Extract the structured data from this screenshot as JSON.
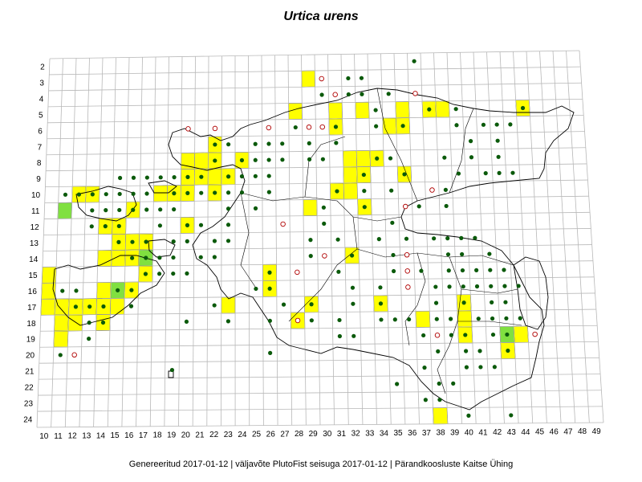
{
  "title": "Urtica urens",
  "footer": "Genereeritud 2017-01-12  |  väljavõte PlutoFist seisuga 2017-01-12  |  Pärandkoosluste Kaitse Ühing",
  "grid": {
    "x_labels": [
      "10",
      "11",
      "12",
      "13",
      "14",
      "15",
      "16",
      "17",
      "18",
      "19",
      "20",
      "21",
      "22",
      "23",
      "24",
      "25",
      "26",
      "27",
      "28",
      "29",
      "30",
      "31",
      "32",
      "33",
      "34",
      "35",
      "36",
      "37",
      "38",
      "39",
      "40",
      "41",
      "42",
      "43",
      "44",
      "45",
      "46",
      "47",
      "48",
      "49"
    ],
    "y_labels": [
      "2",
      "3",
      "4",
      "5",
      "6",
      "7",
      "8",
      "9",
      "10",
      "11",
      "12",
      "13",
      "14",
      "15",
      "16",
      "17",
      "18",
      "19",
      "20",
      "21",
      "22",
      "23",
      "24"
    ]
  },
  "colors": {
    "grid": "#b8b8b8",
    "coast": "#000000",
    "cell_yellow": "#ffff00",
    "cell_green": "#80e040",
    "dot_filled": "#0b5a0b",
    "dot_open": "#b00000"
  },
  "occurrence_cells": {
    "yellow": [
      [
        29,
        3
      ],
      [
        31,
        5
      ],
      [
        33,
        5
      ],
      [
        36,
        5
      ],
      [
        38,
        5
      ],
      [
        39,
        5
      ],
      [
        45,
        5
      ],
      [
        28,
        5
      ],
      [
        31,
        6
      ],
      [
        35,
        6
      ],
      [
        36,
        6
      ],
      [
        22,
        7
      ],
      [
        20,
        8
      ],
      [
        21,
        8
      ],
      [
        22,
        8
      ],
      [
        24,
        8
      ],
      [
        32,
        8
      ],
      [
        33,
        8
      ],
      [
        34,
        8
      ],
      [
        20,
        9
      ],
      [
        21,
        9
      ],
      [
        22,
        9
      ],
      [
        23,
        9
      ],
      [
        32,
        9
      ],
      [
        33,
        9
      ],
      [
        36,
        9
      ],
      [
        12,
        10
      ],
      [
        13,
        10
      ],
      [
        18,
        10
      ],
      [
        19,
        10
      ],
      [
        20,
        10
      ],
      [
        22,
        10
      ],
      [
        31,
        10
      ],
      [
        32,
        10
      ],
      [
        29,
        11
      ],
      [
        33,
        11
      ],
      [
        16,
        11
      ],
      [
        14,
        12
      ],
      [
        15,
        12
      ],
      [
        20,
        12
      ],
      [
        15,
        13
      ],
      [
        16,
        13
      ],
      [
        17,
        13
      ],
      [
        14,
        14
      ],
      [
        15,
        14
      ],
      [
        16,
        14
      ],
      [
        17,
        14
      ],
      [
        32,
        14
      ],
      [
        10,
        15
      ],
      [
        17,
        15
      ],
      [
        10,
        16
      ],
      [
        14,
        16
      ],
      [
        16,
        16
      ],
      [
        10,
        17
      ],
      [
        11,
        17
      ],
      [
        12,
        17
      ],
      [
        13,
        17
      ],
      [
        14,
        17
      ],
      [
        15,
        17
      ],
      [
        23,
        17
      ],
      [
        26,
        16
      ],
      [
        26,
        15
      ],
      [
        29,
        17
      ],
      [
        34,
        17
      ],
      [
        40,
        17
      ],
      [
        11,
        18
      ],
      [
        12,
        18
      ],
      [
        14,
        18
      ],
      [
        28,
        18
      ],
      [
        37,
        18
      ],
      [
        40,
        18
      ],
      [
        11,
        19
      ],
      [
        40,
        19
      ],
      [
        43,
        19
      ],
      [
        44,
        19
      ],
      [
        43,
        20
      ],
      [
        38,
        24
      ]
    ],
    "green": [
      [
        11,
        11
      ],
      [
        15,
        16
      ],
      [
        17,
        14
      ],
      [
        43,
        19
      ]
    ]
  },
  "records": {
    "filled": [
      [
        37,
        2
      ],
      [
        30,
        3
      ],
      [
        32,
        3
      ],
      [
        33,
        3
      ],
      [
        30,
        4
      ],
      [
        32,
        4
      ],
      [
        33,
        4
      ],
      [
        35,
        4
      ],
      [
        45,
        5
      ],
      [
        34,
        5
      ],
      [
        38,
        5
      ],
      [
        40,
        5
      ],
      [
        28,
        6
      ],
      [
        31,
        6
      ],
      [
        34,
        6
      ],
      [
        36,
        6
      ],
      [
        40,
        6
      ],
      [
        42,
        6
      ],
      [
        43,
        6
      ],
      [
        44,
        6
      ],
      [
        22,
        7
      ],
      [
        23,
        7
      ],
      [
        25,
        7
      ],
      [
        26,
        7
      ],
      [
        27,
        7
      ],
      [
        29,
        7
      ],
      [
        31,
        7
      ],
      [
        41,
        7
      ],
      [
        43,
        7
      ],
      [
        22,
        8
      ],
      [
        24,
        8
      ],
      [
        25,
        8
      ],
      [
        26,
        8
      ],
      [
        27,
        8
      ],
      [
        29,
        8
      ],
      [
        30,
        8
      ],
      [
        34,
        8
      ],
      [
        35,
        8
      ],
      [
        39,
        8
      ],
      [
        41,
        8
      ],
      [
        43,
        8
      ],
      [
        15,
        9
      ],
      [
        16,
        9
      ],
      [
        17,
        9
      ],
      [
        18,
        9
      ],
      [
        19,
        9
      ],
      [
        20,
        9
      ],
      [
        21,
        9
      ],
      [
        23,
        9
      ],
      [
        24,
        9
      ],
      [
        25,
        9
      ],
      [
        26,
        9
      ],
      [
        33,
        9
      ],
      [
        36,
        9
      ],
      [
        40,
        9
      ],
      [
        42,
        9
      ],
      [
        43,
        9
      ],
      [
        44,
        9
      ],
      [
        11,
        10
      ],
      [
        12,
        10
      ],
      [
        13,
        10
      ],
      [
        14,
        10
      ],
      [
        15,
        10
      ],
      [
        16,
        10
      ],
      [
        17,
        10
      ],
      [
        19,
        10
      ],
      [
        20,
        10
      ],
      [
        21,
        10
      ],
      [
        22,
        10
      ],
      [
        23,
        10
      ],
      [
        24,
        10
      ],
      [
        26,
        10
      ],
      [
        31,
        10
      ],
      [
        33,
        10
      ],
      [
        35,
        10
      ],
      [
        39,
        10
      ],
      [
        13,
        11
      ],
      [
        14,
        11
      ],
      [
        15,
        11
      ],
      [
        16,
        11
      ],
      [
        17,
        11
      ],
      [
        18,
        11
      ],
      [
        19,
        11
      ],
      [
        23,
        11
      ],
      [
        25,
        11
      ],
      [
        30,
        11
      ],
      [
        33,
        11
      ],
      [
        37,
        11
      ],
      [
        39,
        11
      ],
      [
        13,
        12
      ],
      [
        14,
        12
      ],
      [
        15,
        12
      ],
      [
        18,
        12
      ],
      [
        20,
        12
      ],
      [
        21,
        12
      ],
      [
        23,
        12
      ],
      [
        30,
        12
      ],
      [
        35,
        12
      ],
      [
        15,
        13
      ],
      [
        16,
        13
      ],
      [
        17,
        13
      ],
      [
        19,
        13
      ],
      [
        20,
        13
      ],
      [
        22,
        13
      ],
      [
        23,
        13
      ],
      [
        29,
        13
      ],
      [
        31,
        13
      ],
      [
        34,
        13
      ],
      [
        36,
        13
      ],
      [
        38,
        13
      ],
      [
        39,
        13
      ],
      [
        40,
        13
      ],
      [
        41,
        13
      ],
      [
        16,
        14
      ],
      [
        17,
        14
      ],
      [
        18,
        14
      ],
      [
        19,
        14
      ],
      [
        21,
        14
      ],
      [
        22,
        14
      ],
      [
        29,
        14
      ],
      [
        32,
        14
      ],
      [
        35,
        14
      ],
      [
        36,
        14
      ],
      [
        39,
        14
      ],
      [
        40,
        14
      ],
      [
        42,
        14
      ],
      [
        17,
        15
      ],
      [
        18,
        15
      ],
      [
        19,
        15
      ],
      [
        20,
        15
      ],
      [
        26,
        15
      ],
      [
        28,
        15
      ],
      [
        31,
        15
      ],
      [
        35,
        15
      ],
      [
        37,
        15
      ],
      [
        39,
        15
      ],
      [
        40,
        15
      ],
      [
        41,
        15
      ],
      [
        42,
        15
      ],
      [
        43,
        15
      ],
      [
        11,
        16
      ],
      [
        12,
        16
      ],
      [
        15,
        16
      ],
      [
        16,
        16
      ],
      [
        25,
        16
      ],
      [
        26,
        16
      ],
      [
        32,
        16
      ],
      [
        34,
        16
      ],
      [
        38,
        16
      ],
      [
        39,
        16
      ],
      [
        40,
        16
      ],
      [
        41,
        16
      ],
      [
        42,
        16
      ],
      [
        43,
        16
      ],
      [
        44,
        16
      ],
      [
        12,
        17
      ],
      [
        13,
        17
      ],
      [
        14,
        17
      ],
      [
        16,
        17
      ],
      [
        22,
        17
      ],
      [
        27,
        17
      ],
      [
        29,
        17
      ],
      [
        32,
        17
      ],
      [
        34,
        17
      ],
      [
        38,
        17
      ],
      [
        40,
        17
      ],
      [
        42,
        17
      ],
      [
        43,
        17
      ],
      [
        13,
        18
      ],
      [
        14,
        18
      ],
      [
        20,
        18
      ],
      [
        23,
        18
      ],
      [
        26,
        18
      ],
      [
        29,
        18
      ],
      [
        31,
        18
      ],
      [
        34,
        18
      ],
      [
        35,
        18
      ],
      [
        36,
        18
      ],
      [
        38,
        18
      ],
      [
        39,
        18
      ],
      [
        41,
        18
      ],
      [
        42,
        18
      ],
      [
        43,
        18
      ],
      [
        44,
        18
      ],
      [
        13,
        19
      ],
      [
        31,
        19
      ],
      [
        32,
        19
      ],
      [
        37,
        19
      ],
      [
        38,
        19
      ],
      [
        39,
        19
      ],
      [
        40,
        19
      ],
      [
        42,
        19
      ],
      [
        43,
        19
      ],
      [
        11,
        20
      ],
      [
        38,
        20
      ],
      [
        40,
        20
      ],
      [
        41,
        20
      ],
      [
        43,
        20
      ],
      [
        26,
        20
      ],
      [
        19,
        21
      ],
      [
        37,
        21
      ],
      [
        40,
        21
      ],
      [
        41,
        21
      ],
      [
        42,
        21
      ],
      [
        35,
        22
      ],
      [
        38,
        22
      ],
      [
        39,
        22
      ],
      [
        37,
        23
      ],
      [
        38,
        23
      ],
      [
        40,
        24
      ],
      [
        43,
        24
      ]
    ],
    "open": [
      [
        30,
        3
      ],
      [
        31,
        4
      ],
      [
        37,
        4
      ],
      [
        20,
        6
      ],
      [
        22,
        6
      ],
      [
        26,
        6
      ],
      [
        29,
        6
      ],
      [
        30,
        6
      ],
      [
        38,
        10
      ],
      [
        36,
        11
      ],
      [
        27,
        12
      ],
      [
        30,
        14
      ],
      [
        36,
        14
      ],
      [
        28,
        15
      ],
      [
        36,
        15
      ],
      [
        36,
        16
      ],
      [
        28,
        18
      ],
      [
        38,
        19
      ],
      [
        45,
        19
      ],
      [
        12,
        20
      ]
    ]
  }
}
